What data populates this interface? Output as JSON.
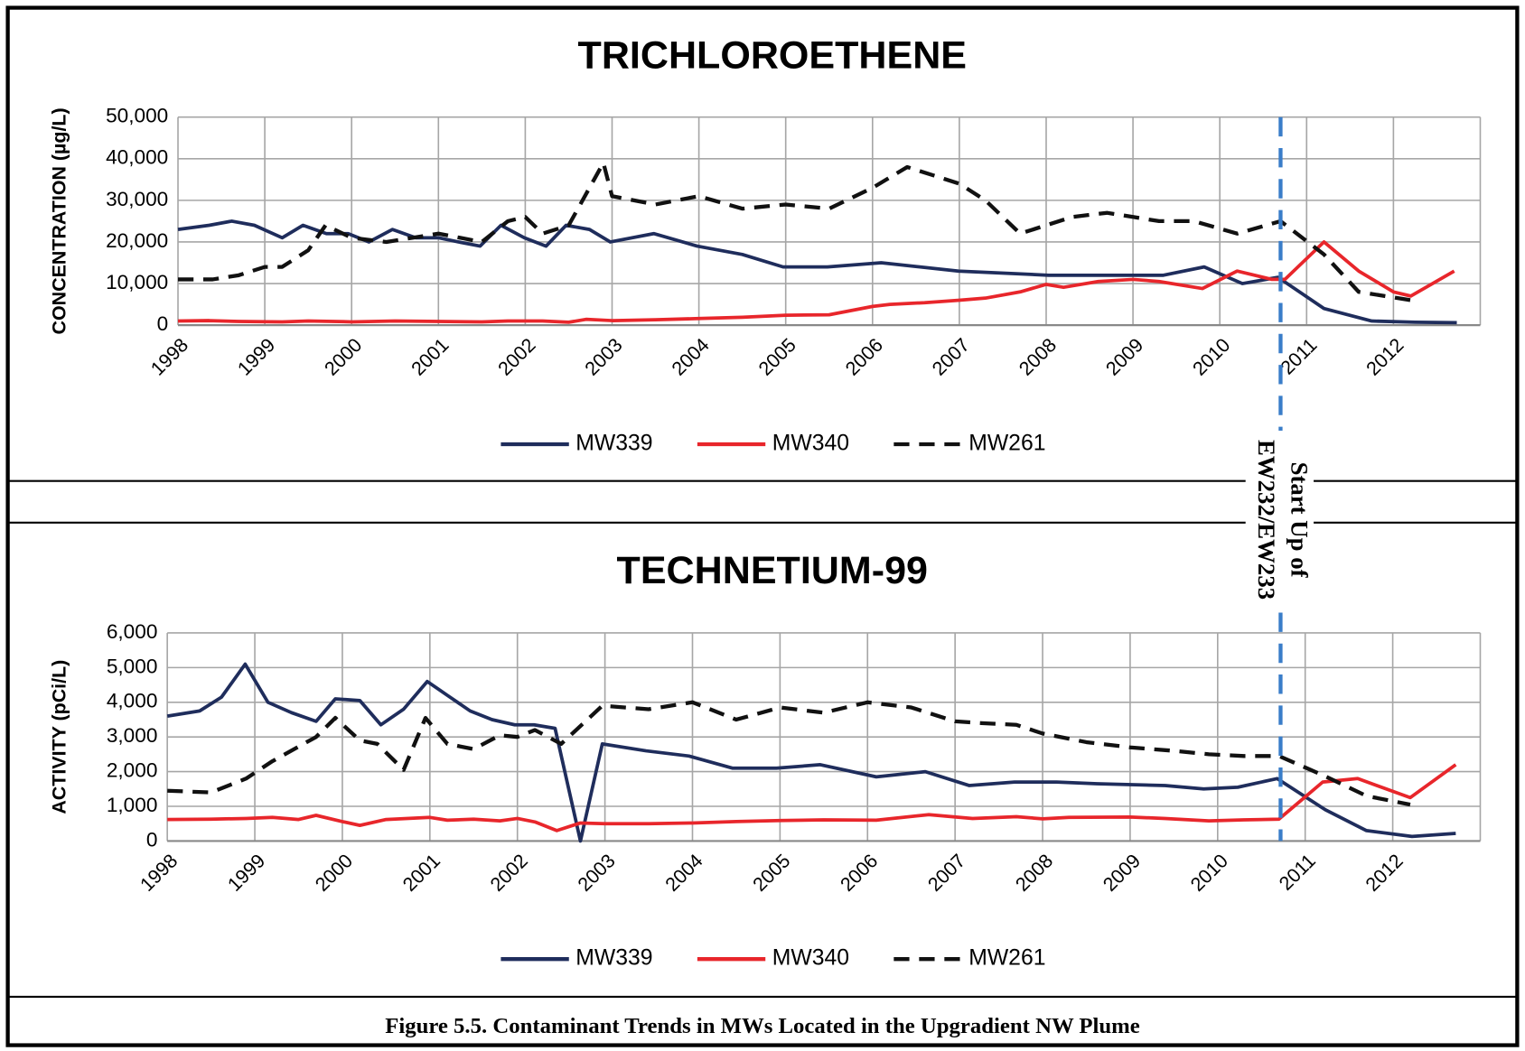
{
  "chart_data": [
    {
      "type": "line",
      "title": "TRICHLOROETHENE",
      "y_label": "CONCENTRATION (µg/L)",
      "xlim": [
        1998,
        2013
      ],
      "xticks": [
        1998,
        1999,
        2000,
        2001,
        2002,
        2003,
        2004,
        2005,
        2006,
        2007,
        2008,
        2009,
        2010,
        2011,
        2012
      ],
      "ylim": [
        0,
        50000
      ],
      "yticks": [
        0,
        {
          "value": 10000,
          "label": "10,000"
        },
        {
          "value": 20000,
          "label": "20,000"
        },
        {
          "value": 30000,
          "label": "30,000"
        },
        {
          "value": 40000,
          "label": "40,000"
        },
        {
          "value": 50000,
          "label": "50,000"
        }
      ],
      "grid": true,
      "legend": "bottom",
      "series": [
        {
          "name": "MW339",
          "color": "#1f2d5c",
          "dashed": false,
          "x": [
            1998.0,
            1998.36,
            1998.62,
            1998.88,
            1999.2,
            1999.44,
            1999.71,
            1999.96,
            2000.2,
            2000.47,
            2000.74,
            2001.0,
            2001.23,
            2001.48,
            2001.72,
            2001.99,
            2002.24,
            2002.47,
            2002.74,
            2002.98,
            2003.48,
            2003.98,
            2004.5,
            2004.97,
            2005.48,
            2006.1,
            2006.99,
            2008.03,
            2008.5,
            2009.0,
            2009.35,
            2009.82,
            2010.26,
            2010.67,
            2011.2,
            2011.75,
            2012.25,
            2012.73
          ],
          "values": [
            23000,
            24000,
            25000,
            24000,
            21000,
            24000,
            22000,
            22000,
            20000,
            23000,
            21000,
            21000,
            20000,
            19000,
            24000,
            21000,
            19000,
            24000,
            23000,
            20000,
            22000,
            19000,
            17000,
            14000,
            14000,
            15000,
            13000,
            12000,
            12000,
            12000,
            12000,
            14000,
            10000,
            11500,
            4000,
            1000,
            700,
            600
          ]
        },
        {
          "name": "MW340",
          "color": "#e8262b",
          "dashed": false,
          "x": [
            1998.0,
            1998.36,
            1998.7,
            1999.2,
            1999.5,
            2000.0,
            2000.5,
            2001.0,
            2001.5,
            2001.8,
            2002.2,
            2002.5,
            2002.7,
            2003.0,
            2003.5,
            2004.0,
            2004.5,
            2005.0,
            2005.5,
            2006.0,
            2006.2,
            2006.6,
            2007.0,
            2007.3,
            2007.7,
            2008.0,
            2008.2,
            2008.6,
            2009.0,
            2009.3,
            2009.8,
            2010.2,
            2010.6,
            2010.75,
            2011.2,
            2011.6,
            2012.0,
            2012.2,
            2012.7
          ],
          "values": [
            1000,
            1100,
            900,
            800,
            1000,
            800,
            1000,
            900,
            800,
            1000,
            1000,
            700,
            1400,
            1100,
            1300,
            1600,
            1900,
            2400,
            2500,
            4500,
            5000,
            5400,
            6000,
            6500,
            8000,
            9800,
            9100,
            10500,
            11000,
            10500,
            8800,
            13000,
            11000,
            11000,
            20000,
            13000,
            8000,
            7000,
            13000
          ]
        },
        {
          "name": "MW261",
          "color": "#111111",
          "dashed": true,
          "x": [
            1998.0,
            1998.4,
            1998.7,
            1999.0,
            1999.2,
            1999.5,
            1999.7,
            2000.0,
            2000.4,
            2000.7,
            2001.0,
            2001.5,
            2001.8,
            2002.0,
            2002.2,
            2002.5,
            2002.9,
            2003.0,
            2003.5,
            2004.0,
            2004.5,
            2005.0,
            2005.5,
            2006.0,
            2006.4,
            2007.0,
            2007.3,
            2007.7,
            2008.0,
            2008.3,
            2008.7,
            2009.0,
            2009.3,
            2009.7,
            2010.2,
            2010.7,
            2011.2,
            2011.6,
            2011.9,
            2012.2
          ],
          "values": [
            11000,
            11000,
            12000,
            14000,
            14000,
            18000,
            24000,
            21000,
            20000,
            21000,
            22000,
            20000,
            25000,
            26000,
            22000,
            24000,
            39000,
            31000,
            29000,
            31000,
            28000,
            29000,
            28000,
            33000,
            38000,
            34000,
            30000,
            22000,
            24000,
            26000,
            27000,
            26000,
            25000,
            25000,
            22000,
            25000,
            17000,
            8000,
            7000,
            6000
          ]
        }
      ]
    },
    {
      "type": "line",
      "title": "TECHNETIUM-99",
      "y_label": "ACTIVITY (pCi/L)",
      "xlim": [
        1998,
        2013
      ],
      "xticks": [
        1998,
        1999,
        2000,
        2001,
        2002,
        2003,
        2004,
        2005,
        2006,
        2007,
        2008,
        2009,
        2010,
        2011,
        2012
      ],
      "ylim": [
        0,
        6000
      ],
      "yticks": [
        0,
        {
          "value": 1000,
          "label": "1,000"
        },
        {
          "value": 2000,
          "label": "2,000"
        },
        {
          "value": 3000,
          "label": "3,000"
        },
        {
          "value": 4000,
          "label": "4,000"
        },
        {
          "value": 5000,
          "label": "5,000"
        },
        {
          "value": 6000,
          "label": "6,000"
        }
      ],
      "grid": true,
      "legend": "bottom",
      "series": [
        {
          "name": "MW339",
          "color": "#1f2d5c",
          "dashed": false,
          "x": [
            1998.0,
            1998.37,
            1998.62,
            1998.89,
            1999.15,
            1999.42,
            1999.7,
            1999.92,
            2000.2,
            2000.44,
            2000.7,
            2000.97,
            2001.2,
            2001.46,
            2001.71,
            2001.97,
            2002.19,
            2002.43,
            2002.72,
            2002.97,
            2003.47,
            2003.96,
            2004.46,
            2004.96,
            2005.46,
            2006.1,
            2006.66,
            2007.16,
            2007.68,
            2008.16,
            2008.62,
            2009.4,
            2009.84,
            2010.23,
            2010.68,
            2011.23,
            2011.7,
            2012.22,
            2012.72
          ],
          "values": [
            3600,
            3750,
            4150,
            5100,
            4000,
            3700,
            3450,
            4100,
            4050,
            3350,
            3800,
            4600,
            4200,
            3750,
            3500,
            3350,
            3350,
            3250,
            0,
            2800,
            2600,
            2450,
            2100,
            2100,
            2200,
            1850,
            2000,
            1600,
            1700,
            1700,
            1650,
            1600,
            1500,
            1550,
            1800,
            900,
            300,
            130,
            220
          ]
        },
        {
          "name": "MW340",
          "color": "#e8262b",
          "dashed": false,
          "x": [
            1998.0,
            1998.5,
            1998.9,
            1999.2,
            1999.5,
            1999.7,
            2000.0,
            2000.2,
            2000.5,
            2001.0,
            2001.2,
            2001.5,
            2001.8,
            2002.0,
            2002.2,
            2002.45,
            2002.72,
            2003.0,
            2003.5,
            2004.0,
            2004.5,
            2005.0,
            2005.5,
            2006.1,
            2006.7,
            2007.2,
            2007.7,
            2008.0,
            2008.3,
            2009.0,
            2009.4,
            2009.9,
            2010.3,
            2010.7,
            2011.2,
            2011.6,
            2012.2,
            2012.72
          ],
          "values": [
            620,
            630,
            650,
            680,
            620,
            740,
            560,
            450,
            620,
            680,
            600,
            630,
            580,
            650,
            550,
            300,
            520,
            500,
            500,
            520,
            560,
            590,
            610,
            600,
            760,
            650,
            700,
            640,
            680,
            690,
            650,
            580,
            610,
            630,
            1700,
            1800,
            1250,
            2200
          ]
        },
        {
          "name": "MW261",
          "color": "#111111",
          "dashed": true,
          "x": [
            1998.0,
            1998.5,
            1998.9,
            1999.2,
            1999.7,
            1999.92,
            2000.2,
            2000.4,
            2000.7,
            2000.95,
            2001.2,
            2001.5,
            2001.8,
            2002.0,
            2002.2,
            2002.5,
            2002.97,
            2003.5,
            2004.0,
            2004.5,
            2005.0,
            2005.5,
            2006.0,
            2006.5,
            2007.0,
            2007.3,
            2007.7,
            2008.0,
            2008.5,
            2009.0,
            2009.5,
            2009.9,
            2010.3,
            2010.7,
            2011.2,
            2011.7,
            2012.0,
            2012.2
          ],
          "values": [
            1450,
            1400,
            1800,
            2300,
            3000,
            3550,
            2900,
            2800,
            2050,
            3550,
            2800,
            2650,
            3050,
            3000,
            3200,
            2800,
            3900,
            3800,
            4000,
            3500,
            3850,
            3700,
            4000,
            3850,
            3450,
            3400,
            3350,
            3100,
            2850,
            2700,
            2600,
            2500,
            2450,
            2450,
            1900,
            1300,
            1150,
            1050
          ]
        }
      ]
    }
  ],
  "annotation": {
    "lines": [
      "Start Up of",
      "EW232/EW233"
    ],
    "x": 2010.7,
    "color": "#3a7dc9"
  },
  "caption": "Figure 5.5. Contaminant Trends in MWs Located in the Upgradient NW Plume"
}
